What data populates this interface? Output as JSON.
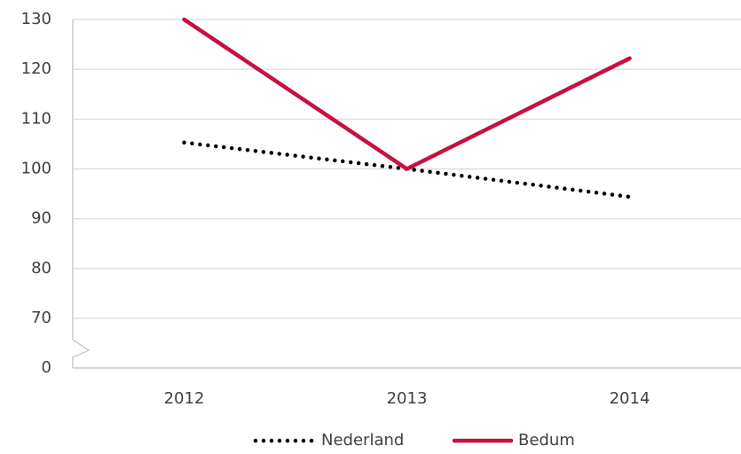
{
  "chart_data": {
    "type": "line",
    "categories": [
      "2012",
      "2013",
      "2014"
    ],
    "series": [
      {
        "name": "Nederland",
        "color": "#000000",
        "style": "dotted",
        "values": [
          105.3,
          100,
          94.4
        ]
      },
      {
        "name": "Bedum",
        "color": "#c8103e",
        "style": "solid",
        "values": [
          130,
          100,
          122.2
        ]
      }
    ],
    "ylim": [
      0,
      130
    ],
    "yticks": [
      0,
      70,
      80,
      90,
      100,
      110,
      120,
      130
    ],
    "axis_break": [
      0,
      70
    ],
    "grid": true,
    "legend": "bottom"
  }
}
